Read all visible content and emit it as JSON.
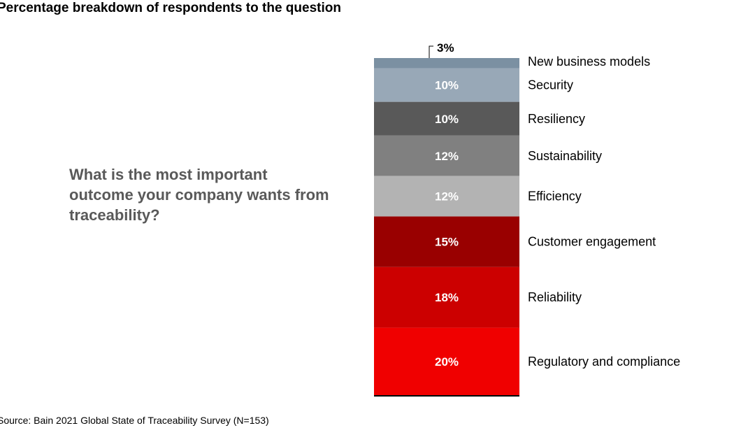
{
  "chart_data": {
    "type": "bar",
    "stacked": true,
    "title": "Percentage breakdown of respondents to the question",
    "question": "What is the most important outcome your company wants from traceability?",
    "source": "Source: Bain 2021 Global State of Traceability Survey (N=153)",
    "unit": "%",
    "categories": [
      "New business models",
      "Security",
      "Resiliency",
      "Sustainability",
      "Efficiency",
      "Customer engagement",
      "Reliability",
      "Regulatory and compliance"
    ],
    "values": [
      3,
      10,
      10,
      12,
      12,
      15,
      18,
      20
    ],
    "labels": [
      "3%",
      "10%",
      "10%",
      "12%",
      "12%",
      "15%",
      "18%",
      "20%"
    ],
    "colors": [
      "#7b90a2",
      "#98a8b7",
      "#595959",
      "#808080",
      "#b3b3b3",
      "#990000",
      "#cc0000",
      "#f00000"
    ]
  }
}
